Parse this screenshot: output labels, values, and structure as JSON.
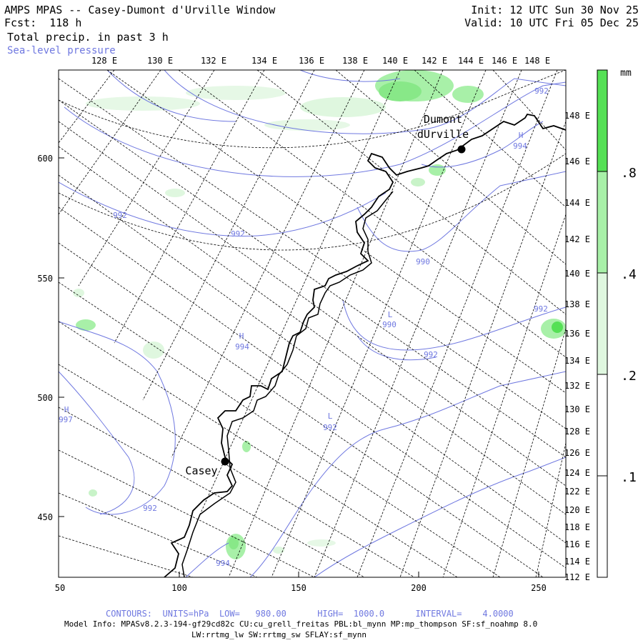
{
  "header": {
    "title": "AMPS MPAS -- Casey-Dumont d'Urville Window",
    "forecast": "Fcst:  118 h",
    "field": "Total precip. in past 3 h",
    "overlay": "Sea-level pressure",
    "init": "Init: 12 UTC Sun 30 Nov 25",
    "valid": "Valid: 10 UTC Fri 05 Dec 25"
  },
  "map": {
    "top_lon_labels": [
      "128 E",
      "130 E",
      "132 E",
      "134 E",
      "136 E",
      "138 E",
      "140 E",
      "142 E",
      "144 E",
      "146 E",
      "148 E"
    ],
    "right_lon_labels": [
      "148 E",
      "146 E",
      "144 E",
      "142 E",
      "140 E",
      "138 E",
      "136 E",
      "134 E",
      "132 E",
      "130 E",
      "128 E",
      "126 E",
      "124 E",
      "122 E",
      "120 E",
      "118 E",
      "116 E",
      "114 E",
      "112 E"
    ],
    "x_ticks": [
      "50",
      "100",
      "150",
      "200",
      "250"
    ],
    "y_ticks": [
      "600",
      "550",
      "500",
      "450"
    ],
    "stations": [
      {
        "name_line1": "Dumont",
        "name_line2": "dUrville"
      },
      {
        "name_line1": "Casey"
      }
    ],
    "pressure_labels": [
      "992",
      "992",
      "992",
      "990",
      "L",
      "990",
      "H",
      "994",
      "H",
      "997",
      "L",
      "992",
      "992",
      "992",
      "H",
      "994",
      "994",
      "992"
    ]
  },
  "colorbar": {
    "unit": "mm",
    "levels": [
      ".8",
      ".4",
      ".2",
      ".1"
    ],
    "colors": [
      "#55e055",
      "#a8f0a8",
      "#dff7df",
      "#ffffff"
    ]
  },
  "footer": {
    "contours": "CONTOURS:  UNITS=hPa  LOW=   980.00      HIGH=  1000.0      INTERVAL=    4.0000",
    "model_info": "Model Info: MPASv8.2.3-194-gf29cd82c CU:cu_grell_freitas PBL:bl_mynn MP:mp_thompson SF:sf_noahmp 8.0",
    "model_info2": "LW:rrtmg_lw SW:rrtmg_sw SFLAY:sf_mynn"
  },
  "colors": {
    "contour": "#6f78e0",
    "precip_light": "#dff7df",
    "precip_mid": "#a8f0a8",
    "precip_strong": "#55e055"
  }
}
